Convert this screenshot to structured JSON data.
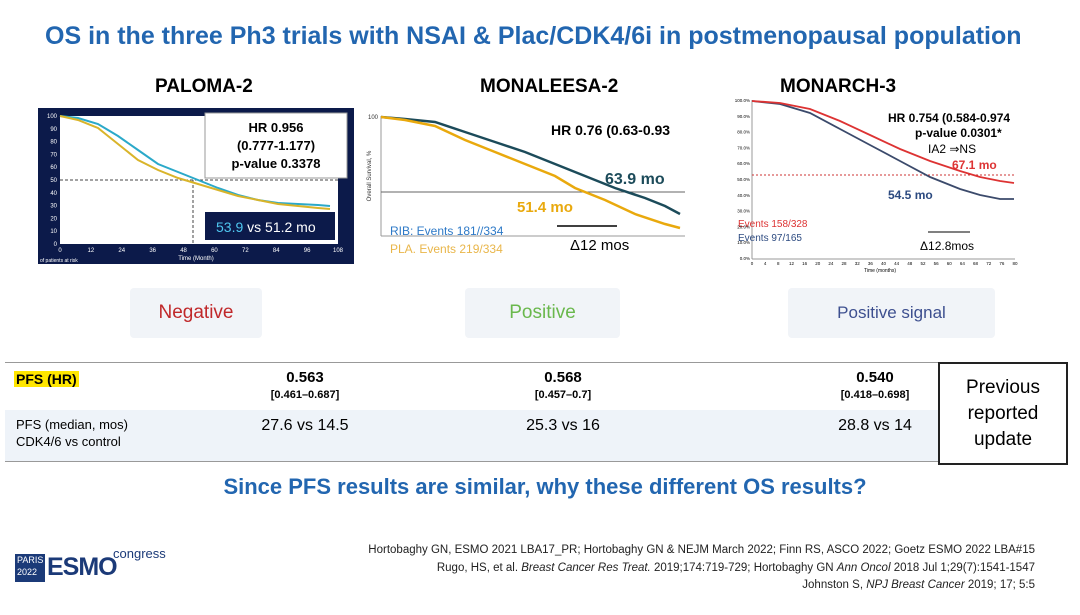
{
  "title": "OS in the three Ph3 trials with NSAI & Plac/CDK4/6i in postmenopausal population",
  "trials": [
    {
      "name": "PALOMA-2",
      "hr": [
        "HR 0.956",
        "(0.777-1.177)",
        "p-value 0.3378"
      ],
      "median": [
        "53.9",
        "vs",
        "51.2 mo"
      ],
      "x_label": "Time (Month)",
      "risk_label": "of patients at risk",
      "xticks": [
        "0",
        "12",
        "24",
        "36",
        "48",
        "60",
        "72",
        "84",
        "96",
        "108"
      ],
      "yticks": [
        "0",
        "10",
        "20",
        "30",
        "40",
        "50",
        "60",
        "70",
        "80",
        "90",
        "100"
      ],
      "verdict": "Negative"
    },
    {
      "name": "MONALEESA-2",
      "hr": [
        "HR 0.76 (0.63-0.93"
      ],
      "y_label": "Overall Survival, %",
      "ytop": "100",
      "median_a": "63.9 mo",
      "median_b": "51.4 mo",
      "events": [
        "RIB: Events 181//334",
        "PLA. Events 219/334"
      ],
      "delta": "Δ12 mos",
      "verdict": "Positive"
    },
    {
      "name": "MONARCH-3",
      "hr": [
        "HR 0.754 (0.584-0.974",
        "p-value 0.0301*",
        "IA2 ⇒NS"
      ],
      "median_a": "67.1 mo",
      "median_b": "54.5 mo",
      "events": [
        "Events 158/328",
        "Events 97/165"
      ],
      "delta": "Δ12.8mos",
      "x_label": "Time (months)",
      "xticks": [
        "0",
        "4",
        "8",
        "12",
        "16",
        "20",
        "24",
        "28",
        "32",
        "36",
        "40",
        "44",
        "48",
        "52",
        "56",
        "60",
        "64",
        "68",
        "72",
        "76",
        "80"
      ],
      "yticks": [
        "100.0%",
        "90.0%",
        "80.0%",
        "70.0%",
        "60.0%",
        "50.0%",
        "40.0%",
        "30.0%",
        "20.0%",
        "10.0%",
        "0.0%"
      ],
      "verdict": "Positive signal"
    }
  ],
  "table": {
    "rows": [
      {
        "label": [
          "PFS (HR)"
        ],
        "cells": [
          {
            "value": "0.563",
            "ci": "[0.461–0.687]"
          },
          {
            "value": "0.568",
            "ci": "[0.457–0.7]"
          },
          {
            "value": "0.540",
            "ci": "[0.418–0.698]"
          }
        ]
      },
      {
        "label": [
          "PFS (median, mos)",
          "CDK4/6 vs control"
        ],
        "cells": [
          {
            "value": "27.6 vs 14.5"
          },
          {
            "value": "25.3 vs 16"
          },
          {
            "value": "28.8 vs 14"
          }
        ]
      }
    ],
    "side_note": [
      "Previous",
      "reported",
      "update"
    ]
  },
  "question": "Since PFS results are similar, why these different OS results?",
  "references": [
    [
      "Hortobaghy GN, ESMO 2021 LBA17_PR; Hortobaghy GN  & NEJM March 2022;  Finn RS, ASCO 2022;  Goetz  ESMO 2022 LBA#15"
    ],
    [
      "Rugo, HS, et al. ",
      "Breast Cancer Res Treat.",
      " 2019;174:719-729; Hortobaghy GN ",
      "Ann Oncol",
      " 2018 Jul 1;29(7):1541-1547"
    ],
    [
      "Johnston S, ",
      "NPJ Breast Cancer",
      " 2019; 17; 5:5"
    ]
  ],
  "logo": {
    "city": "PARIS",
    "year": "2022",
    "brand": "ESMO",
    "event": "congress"
  }
}
